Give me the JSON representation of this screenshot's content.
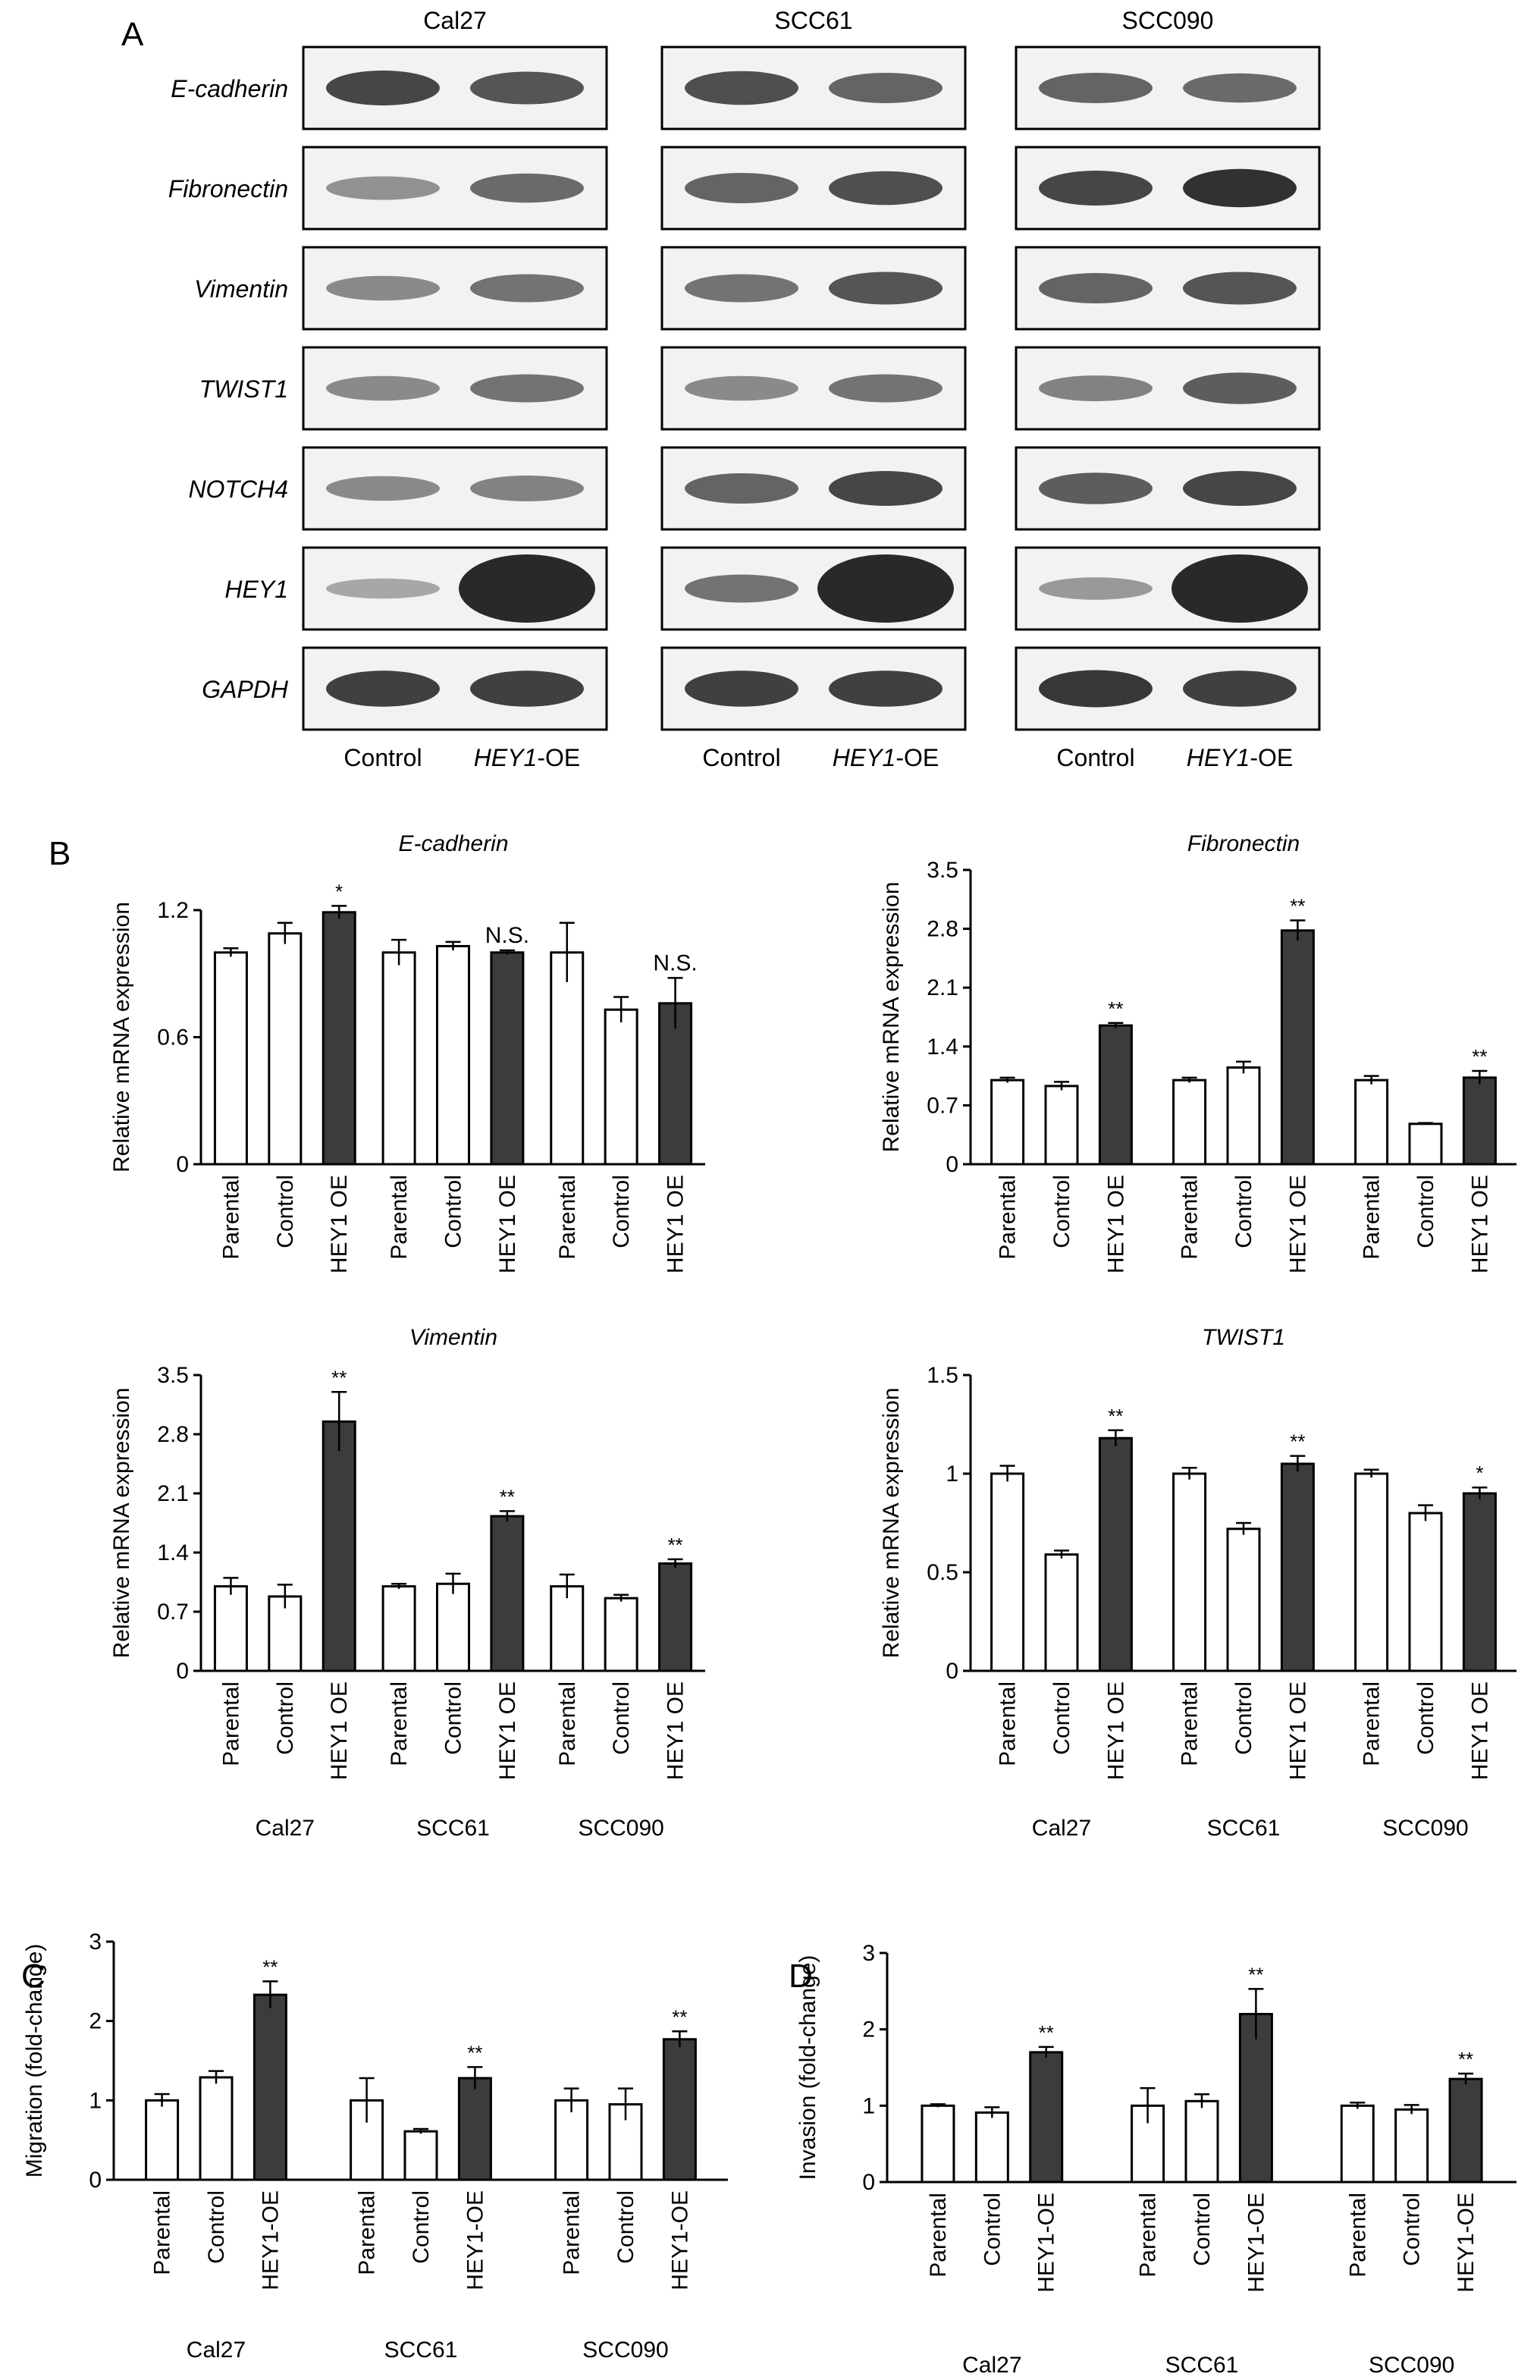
{
  "panel_labels": {
    "a": "A",
    "b": "B",
    "c": "C",
    "d": "D"
  },
  "blot": {
    "cell_lines": [
      "Cal27",
      "SCC61",
      "SCC090"
    ],
    "proteins": [
      "E-cadherin",
      "Fibronectin",
      "Vimentin",
      "TWIST1",
      "NOTCH4",
      "HEY1",
      "GAPDH"
    ],
    "lane_control": "Control",
    "lane_oe_gene": "HEY1",
    "lane_oe_suffix": "-OE"
  },
  "chart_data": [
    {
      "id": "b1",
      "type": "bar",
      "title": "E-cadherin",
      "ylabel": "Relative mRNA expression",
      "ylim": [
        0,
        1.2
      ],
      "yticks": [
        "0",
        "0.6",
        "1.2"
      ],
      "groups": [
        "Cal27",
        "SCC61",
        "SCC090"
      ],
      "categories": [
        "Parental",
        "Control",
        "HEY1 OE"
      ],
      "values": [
        [
          1.0,
          1.09,
          1.19
        ],
        [
          1.0,
          1.03,
          1.0
        ],
        [
          1.0,
          0.73,
          0.76
        ]
      ],
      "errors": [
        [
          0.02,
          0.05,
          0.03
        ],
        [
          0.06,
          0.02,
          0.01
        ],
        [
          0.14,
          0.06,
          0.12
        ]
      ],
      "annotations": [
        [
          "",
          "",
          "*"
        ],
        [
          "",
          "",
          "N.S."
        ],
        [
          "",
          "",
          "N.S."
        ]
      ]
    },
    {
      "id": "b2",
      "type": "bar",
      "title": "Fibronectin",
      "ylabel": "Relative mRNA expression",
      "ylim": [
        0,
        3.5
      ],
      "yticks": [
        "0",
        "0.7",
        "1.4",
        "2.1",
        "2.8",
        "3.5"
      ],
      "groups": [
        "Cal27",
        "SCC61",
        "SCC090"
      ],
      "categories": [
        "Parental",
        "Control",
        "HEY1 OE"
      ],
      "values": [
        [
          1.0,
          0.93,
          1.65
        ],
        [
          1.0,
          1.15,
          2.78
        ],
        [
          1.0,
          0.48,
          1.03
        ]
      ],
      "errors": [
        [
          0.03,
          0.05,
          0.03
        ],
        [
          0.03,
          0.07,
          0.12
        ],
        [
          0.05,
          0.01,
          0.08
        ]
      ],
      "annotations": [
        [
          "",
          "",
          "**"
        ],
        [
          "",
          "",
          "**"
        ],
        [
          "",
          "",
          "**"
        ]
      ]
    },
    {
      "id": "b3",
      "type": "bar",
      "title": "Vimentin",
      "ylabel": "Relative mRNA expression",
      "ylim": [
        0,
        3.5
      ],
      "yticks": [
        "0",
        "0.7",
        "1.4",
        "2.1",
        "2.8",
        "3.5"
      ],
      "groups": [
        "Cal27",
        "SCC61",
        "SCC090"
      ],
      "categories": [
        "Parental",
        "Control",
        "HEY1 OE"
      ],
      "values": [
        [
          1.0,
          0.88,
          2.95
        ],
        [
          1.0,
          1.03,
          1.83
        ],
        [
          1.0,
          0.86,
          1.27
        ]
      ],
      "errors": [
        [
          0.1,
          0.14,
          0.35
        ],
        [
          0.03,
          0.12,
          0.06
        ],
        [
          0.14,
          0.04,
          0.05
        ]
      ],
      "annotations": [
        [
          "",
          "",
          "**"
        ],
        [
          "",
          "",
          "**"
        ],
        [
          "",
          "",
          "**"
        ]
      ]
    },
    {
      "id": "b4",
      "type": "bar",
      "title": "TWIST1",
      "ylabel": "Relative mRNA expression",
      "ylim": [
        0,
        1.5
      ],
      "yticks": [
        "0",
        "0.5",
        "1",
        "1.5"
      ],
      "groups": [
        "Cal27",
        "SCC61",
        "SCC090"
      ],
      "categories": [
        "Parental",
        "Control",
        "HEY1 OE"
      ],
      "values": [
        [
          1.0,
          0.59,
          1.18
        ],
        [
          1.0,
          0.72,
          1.05
        ],
        [
          1.0,
          0.8,
          0.9
        ]
      ],
      "errors": [
        [
          0.04,
          0.02,
          0.04
        ],
        [
          0.03,
          0.03,
          0.04
        ],
        [
          0.02,
          0.04,
          0.03
        ]
      ],
      "annotations": [
        [
          "",
          "",
          "**"
        ],
        [
          "",
          "",
          "**"
        ],
        [
          "",
          "",
          "*"
        ]
      ]
    },
    {
      "id": "c",
      "type": "bar",
      "title": "",
      "ylabel": "Migration (fold-change)",
      "ylim": [
        0,
        3
      ],
      "yticks": [
        "0",
        "1",
        "2",
        "3"
      ],
      "groups": [
        "Cal27",
        "SCC61",
        "SCC090"
      ],
      "categories": [
        "Parental",
        "Control",
        "HEY1-OE"
      ],
      "values": [
        [
          1.0,
          1.29,
          2.33
        ],
        [
          1.0,
          0.61,
          1.28
        ],
        [
          1.0,
          0.95,
          1.77
        ]
      ],
      "errors": [
        [
          0.08,
          0.08,
          0.17
        ],
        [
          0.28,
          0.03,
          0.14
        ],
        [
          0.15,
          0.2,
          0.1
        ]
      ],
      "annotations": [
        [
          "",
          "",
          "**"
        ],
        [
          "",
          "",
          "**"
        ],
        [
          "",
          "",
          "**"
        ]
      ]
    },
    {
      "id": "d",
      "type": "bar",
      "title": "",
      "ylabel": "Invasion (fold-change)",
      "ylim": [
        0,
        3
      ],
      "yticks": [
        "0",
        "1",
        "2",
        "3"
      ],
      "groups": [
        "Cal27",
        "SCC61",
        "SCC090"
      ],
      "categories": [
        "Parental",
        "Control",
        "HEY1-OE"
      ],
      "values": [
        [
          1.0,
          0.91,
          1.7
        ],
        [
          1.0,
          1.06,
          2.2
        ],
        [
          1.0,
          0.95,
          1.35
        ]
      ],
      "errors": [
        [
          0.02,
          0.07,
          0.07
        ],
        [
          0.23,
          0.09,
          0.33
        ],
        [
          0.04,
          0.06,
          0.07
        ]
      ],
      "annotations": [
        [
          "",
          "",
          "**"
        ],
        [
          "",
          "",
          "**"
        ],
        [
          "",
          "",
          "**"
        ]
      ]
    }
  ],
  "colors": {
    "open_bar": "#ffffff",
    "filled_bar": "#3c3c3c",
    "axis": "#000000",
    "blot_bg": "#f2f2f2",
    "band": "#1e1e1e"
  }
}
